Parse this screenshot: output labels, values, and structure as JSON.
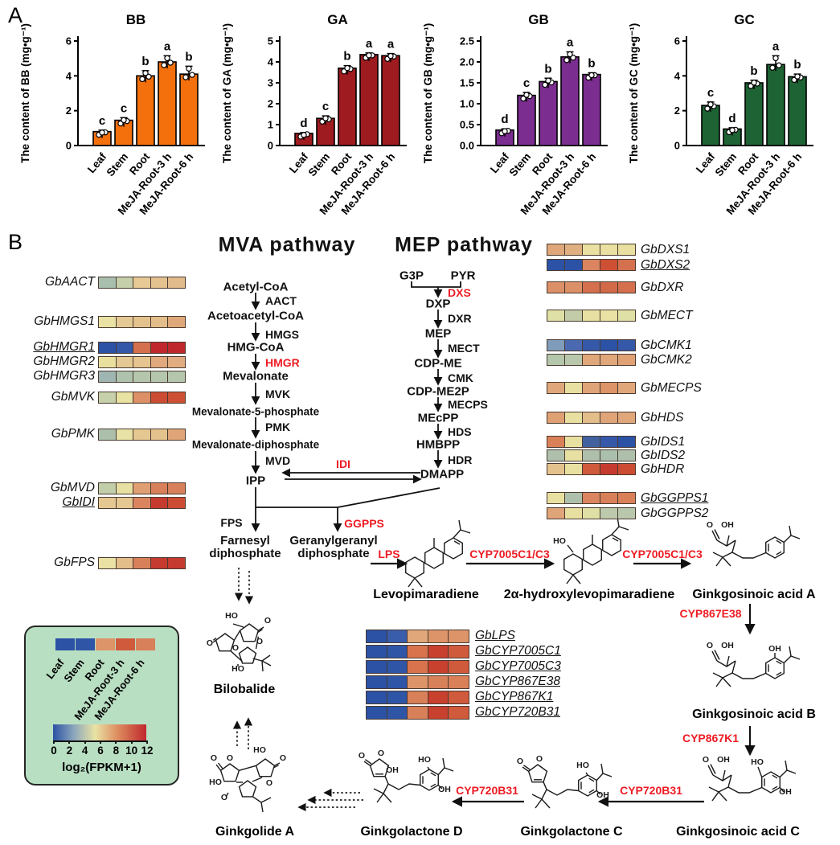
{
  "panel_a": {
    "label": "A",
    "categories": [
      "Leaf",
      "Stem",
      "Root",
      "MeJA-Root-3 h",
      "MeJA-Root-6 h"
    ]
  },
  "chart_data": [
    {
      "type": "bar",
      "id": "BB",
      "title": "BB",
      "color": "#f4700c",
      "ylabel": "The content of BB (mg•g⁻¹)",
      "ylim": [
        0,
        6
      ],
      "yticks": [
        "0",
        "2",
        "4",
        "6"
      ],
      "ytick_vals": [
        0,
        2,
        4,
        6
      ],
      "categories": [
        "Leaf",
        "Stem",
        "Root",
        "MeJA-Root-3 h",
        "MeJA-Root-6 h"
      ],
      "values": [
        0.8,
        1.45,
        4.0,
        4.8,
        4.1
      ],
      "errors": [
        0.08,
        0.15,
        0.3,
        0.35,
        0.45
      ],
      "letters": [
        "c",
        "c",
        "b",
        "a",
        "b"
      ]
    },
    {
      "type": "bar",
      "id": "GA",
      "title": "GA",
      "color": "#9e1b1f",
      "ylabel": "The content of GA (mg•g⁻¹)",
      "ylim": [
        0,
        5
      ],
      "yticks": [
        "0",
        "1",
        "2",
        "3",
        "4",
        "5"
      ],
      "ytick_vals": [
        0,
        1,
        2,
        3,
        4,
        5
      ],
      "categories": [
        "Leaf",
        "Stem",
        "Root",
        "MeJA-Root-3 h",
        "MeJA-Root-6 h"
      ],
      "values": [
        0.58,
        1.3,
        3.7,
        4.35,
        4.3
      ],
      "errors": [
        0.04,
        0.12,
        0.12,
        0.08,
        0.1
      ],
      "letters": [
        "d",
        "c",
        "b",
        "a",
        "a"
      ]
    },
    {
      "type": "bar",
      "id": "GB",
      "title": "GB",
      "color": "#7c2d90",
      "ylabel": "The content of GB (mg•g⁻¹)",
      "ylim": [
        0,
        2.5
      ],
      "yticks": [
        "0.0",
        "0.5",
        "1.0",
        "1.5",
        "2.0",
        "2.5"
      ],
      "ytick_vals": [
        0,
        0.5,
        1,
        1.5,
        2,
        2.5
      ],
      "categories": [
        "Leaf",
        "Stem",
        "Root",
        "MeJA-Root-3 h",
        "MeJA-Root-6 h"
      ],
      "values": [
        0.37,
        1.2,
        1.53,
        2.12,
        1.7
      ],
      "errors": [
        0.03,
        0.07,
        0.08,
        0.12,
        0.04
      ],
      "letters": [
        "d",
        "c",
        "b",
        "a",
        "b"
      ]
    },
    {
      "type": "bar",
      "id": "GC",
      "title": "GC",
      "color": "#1d6333",
      "ylabel": "The content of GC (mg•g⁻¹)",
      "ylim": [
        0,
        6
      ],
      "yticks": [
        "0",
        "2",
        "4",
        "6"
      ],
      "ytick_vals": [
        0,
        2,
        4,
        6
      ],
      "categories": [
        "Leaf",
        "Stem",
        "Root",
        "MeJA-Root-3 h",
        "MeJA-Root-6 h"
      ],
      "values": [
        2.3,
        0.95,
        3.6,
        4.65,
        3.95
      ],
      "errors": [
        0.2,
        0.07,
        0.15,
        0.5,
        0.15
      ],
      "letters": [
        "c",
        "d",
        "b",
        "a",
        "b"
      ]
    }
  ],
  "panel_b": {
    "label": "B",
    "labels": {
      "mva_title": "MVA pathway",
      "mep_title": "MEP pathway",
      "acetyl_coa": "Acetyl-CoA",
      "aact": "AACT",
      "acetoacetyl_coa": "Acetoacetyl-CoA",
      "hmgs": "HMGS",
      "hmg_coa": "HMG-CoA",
      "hmgr": "HMGR",
      "mevalonate": "Mevalonate",
      "mvk": "MVK",
      "mev5p": "Mevalonate-5-phosphate",
      "pmk": "PMK",
      "mevdp": "Mevalonate-diphosphate",
      "mvd": "MVD",
      "ipp": "IPP",
      "idi": "IDI",
      "fps": "FPS",
      "ggpps": "GGPPS",
      "farnesyl1": "Farnesyl",
      "farnesyl2": "diphosphate",
      "ggpp1": "Geranylgeranyl",
      "ggpp2": "diphosphate",
      "g3p": "G3P",
      "pyr": "PYR",
      "dxs": "DXS",
      "dxp": "DXP",
      "dxr": "DXR",
      "mep": "MEP",
      "mect": "MECT",
      "cdp_me": "CDP-ME",
      "cmk": "CMK",
      "cdp_me2p": "CDP-ME2P",
      "mecps": "MECPS",
      "mecpp": "MEcPP",
      "hds": "HDS",
      "hmbpp": "HMBPP",
      "hdr": "HDR",
      "dmapp": "DMAPP",
      "lps": "LPS",
      "cyp7005_1": "CYP7005C1/C3",
      "cyp7005_2": "CYP7005C1/C3",
      "cyp867e38": "CYP867E38",
      "cyp867k1": "CYP867K1",
      "cyp720b31_1": "CYP720B31",
      "cyp720b31_2": "CYP720B31"
    },
    "gene_rows": {
      "left": [
        {
          "gene": "GbAACT",
          "underline": false,
          "colors": [
            "#a9bfae",
            "#c5cfaa",
            "#e6c995",
            "#e4c290",
            "#e2bb8c"
          ]
        },
        {
          "gene": "GbHMGS1",
          "underline": false,
          "colors": [
            "#e9e2a4",
            "#e5c995",
            "#e4c28e",
            "#e3bd8a",
            "#dfa87b"
          ]
        },
        {
          "gene": "GbHMGR1",
          "underline": true,
          "colors": [
            "#2b52a4",
            "#3558a8",
            "#d4704e",
            "#c0272d",
            "#c0272d"
          ]
        },
        {
          "gene": "GbHMGR2",
          "underline": false,
          "colors": [
            "#e9e0a0",
            "#e5c994",
            "#e5c48f",
            "#e0a87c",
            "#e0ac80"
          ]
        },
        {
          "gene": "GbHMGR3",
          "underline": false,
          "colors": [
            "#9fb5b2",
            "#aec2ad",
            "#b4c6ac",
            "#b4c6ac",
            "#b4c6ac"
          ]
        },
        {
          "gene": "GbMVK",
          "underline": false,
          "colors": [
            "#c6d0aa",
            "#e8e2a3",
            "#dd9068",
            "#cc4c33",
            "#cd5034"
          ]
        },
        {
          "gene": "GbPMK",
          "underline": false,
          "colors": [
            "#abbfab",
            "#e8e2a6",
            "#e5c792",
            "#e3c28e",
            "#dfa478"
          ]
        },
        {
          "gene": "GbMVD",
          "underline": false,
          "colors": [
            "#c2cda9",
            "#e7e0a2",
            "#df9f73",
            "#d8805a",
            "#d8805a"
          ]
        },
        {
          "gene": "GbIDI",
          "underline": true,
          "colors": [
            "#e5c791",
            "#e5c791",
            "#da8560",
            "#c63b2f",
            "#cc4c33"
          ]
        },
        {
          "gene": "GbFPS",
          "underline": false,
          "colors": [
            "#e9e2a4",
            "#e3bd8a",
            "#d8805a",
            "#c63b2f",
            "#c63b2f"
          ]
        }
      ],
      "right": [
        {
          "gene": "GbDXS1",
          "underline": false,
          "colors": [
            "#dfa77a",
            "#e0b083",
            "#e9e0a1",
            "#e9e0a1",
            "#e8dfa0"
          ]
        },
        {
          "gene": "GbDXS2",
          "underline": true,
          "colors": [
            "#2b52a4",
            "#2b52a4",
            "#da8560",
            "#cd5034",
            "#d4704e"
          ]
        },
        {
          "gene": "GbDXR",
          "underline": false,
          "colors": [
            "#dc9068",
            "#dc9068",
            "#d4704e",
            "#d26a4a",
            "#d4704e"
          ]
        },
        {
          "gene": "GbMECT",
          "underline": false,
          "colors": [
            "#dfe0a5",
            "#c2cca9",
            "#e7e0a2",
            "#e9e2a4",
            "#dfe0a5"
          ]
        },
        {
          "gene": "GbCMK1",
          "underline": false,
          "colors": [
            "#7f9cba",
            "#4a69b0",
            "#3558a8",
            "#2b52a4",
            "#3558a8"
          ]
        },
        {
          "gene": "GbCMK2",
          "underline": false,
          "colors": [
            "#b4c6ac",
            "#b9c8ac",
            "#dfa77a",
            "#dfa77a",
            "#dfa074"
          ]
        },
        {
          "gene": "GbMECPS",
          "underline": false,
          "colors": [
            "#dfa77a",
            "#e8e0a0",
            "#dfa478",
            "#dc9468",
            "#dfa77a"
          ]
        },
        {
          "gene": "GbHDS",
          "underline": false,
          "colors": [
            "#dfa074",
            "#e8e0a0",
            "#e3bd8a",
            "#dfa478",
            "#dfa77a"
          ]
        },
        {
          "gene": "GbIDS1",
          "underline": false,
          "colors": [
            "#d98058",
            "#e8e0a0",
            "#41619f",
            "#3558a8",
            "#2b52a4"
          ]
        },
        {
          "gene": "GbIDS2",
          "underline": false,
          "colors": [
            "#aec0ac",
            "#e7e0a2",
            "#aec0ac",
            "#aabfad",
            "#aec0ac"
          ]
        },
        {
          "gene": "GbHDR",
          "underline": false,
          "colors": [
            "#e3c28e",
            "#e8e0a0",
            "#d05a3c",
            "#c63b2f",
            "#cc4c33"
          ]
        },
        {
          "gene": "GbGGPPS1",
          "underline": true,
          "colors": [
            "#e8e0a0",
            "#aec0ac",
            "#da8560",
            "#d8805a",
            "#d98058"
          ]
        },
        {
          "gene": "GbGGPPS2",
          "underline": false,
          "colors": [
            "#dfa478",
            "#e8e0a0",
            "#dfe0a5",
            "#bcc9ab",
            "#b9c8ac"
          ]
        }
      ],
      "center": [
        {
          "gene": "GbLPS",
          "underline": true,
          "colors": [
            "#2b52a4",
            "#3a5dab",
            "#dfa77a",
            "#dc9468",
            "#dc9468"
          ]
        },
        {
          "gene": "GbCYP7005C1",
          "underline": true,
          "colors": [
            "#2b52a4",
            "#2e55a6",
            "#d8734e",
            "#c8402e",
            "#d05a3c"
          ]
        },
        {
          "gene": "GbCYP7005C3",
          "underline": true,
          "colors": [
            "#2b52a4",
            "#2e55a6",
            "#d8734e",
            "#c8402e",
            "#d05a3c"
          ]
        },
        {
          "gene": "GbCYP867E38",
          "underline": true,
          "colors": [
            "#2b52a4",
            "#2e55a6",
            "#dc9468",
            "#d8805a",
            "#d98058"
          ]
        },
        {
          "gene": "GbCYP867K1",
          "underline": true,
          "colors": [
            "#2b52a4",
            "#2e55a6",
            "#d8805a",
            "#c8402e",
            "#d05a3c"
          ]
        },
        {
          "gene": "GbCYP720B31",
          "underline": true,
          "colors": [
            "#2b52a4",
            "#2e55a6",
            "#d8805a",
            "#c8402e",
            "#d05a3c"
          ]
        }
      ]
    },
    "molecules": {
      "levopimaradiene": {
        "name": "Levopimaradiene",
        "labels": []
      },
      "hydroxylevopimaradiene": {
        "name": "2α-hydroxylevopimaradiene",
        "labels": [
          "HO"
        ]
      },
      "ginkgosinoic_a": {
        "name": "Ginkgosinoic acid A",
        "labels": [
          "O",
          "OH"
        ]
      },
      "ginkgosinoic_b": {
        "name": "Ginkgosinoic acid B",
        "labels": [
          "O",
          "OH",
          "OH"
        ]
      },
      "ginkgosinoic_c": {
        "name": "Ginkgosinoic acid C",
        "labels": [
          "O",
          "OH",
          "HO",
          "OH"
        ]
      },
      "ginkgolactone_c": {
        "name": "Ginkgolactone C",
        "labels": [
          "O",
          "O",
          "HO",
          "OH"
        ]
      },
      "ginkgolactone_d": {
        "name": "Ginkgolactone D",
        "labels": [
          "O",
          "O",
          "HO",
          "OH",
          "OH"
        ]
      },
      "ginkgolide_a": {
        "name": "Ginkgolide A",
        "labels": [
          "O",
          "O",
          "HO",
          "HO",
          "O",
          "O",
          "O"
        ]
      },
      "bilobalide": {
        "name": "Bilobalide",
        "labels": [
          "HO",
          "O",
          "O",
          "O",
          "O",
          "HO"
        ]
      }
    },
    "legend": {
      "tissues": [
        "Leaf",
        "Stem",
        "Root",
        "MeJA-Root-3 h",
        "MeJA-Root-6 h"
      ],
      "sample_colors": [
        "#2b52a4",
        "#2e55a6",
        "#dc9468",
        "#d05a3c",
        "#d8805a"
      ],
      "ticks": [
        "0",
        "2",
        "4",
        "6",
        "8",
        "10",
        "12"
      ],
      "scale_label": "log₂(FPKM+1)"
    },
    "colors": {
      "enzyme_red": "#ed1c24",
      "legend_bg": "#b9dfc3"
    }
  }
}
